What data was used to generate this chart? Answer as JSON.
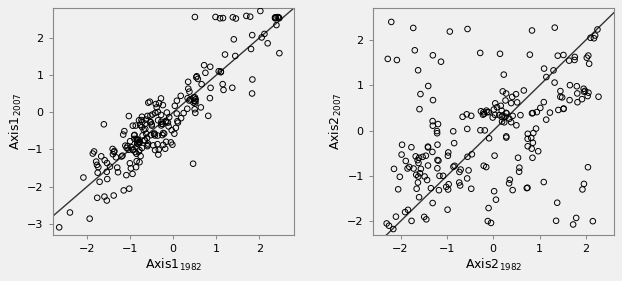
{
  "plot1": {
    "xlabel": "Axis1",
    "xlabel_year": "1982",
    "ylabel": "Axis1",
    "ylabel_year": "2007",
    "xlim": [
      -2.8,
      2.8
    ],
    "ylim": [
      -3.3,
      2.8
    ],
    "xticks": [
      -2,
      -1,
      0,
      1,
      2
    ],
    "yticks": [
      -3,
      -2,
      -1,
      0,
      1,
      2
    ]
  },
  "plot2": {
    "xlabel": "Axis2",
    "xlabel_year": "1982",
    "ylabel": "Axis2",
    "ylabel_year": "2007",
    "xlim": [
      -2.6,
      2.6
    ],
    "ylim": [
      -2.3,
      2.7
    ],
    "xticks": [
      -2,
      -1,
      0,
      1,
      2
    ],
    "yticks": [
      -2,
      -1,
      0,
      1,
      2
    ]
  },
  "marker_size": 16,
  "marker_lw": 0.7,
  "line_color": "#333333",
  "line_width": 1.0,
  "bg_color": "#f0f0f0",
  "panel_bg": "#f0f0f0",
  "label_fontsize": 9,
  "tick_fontsize": 8
}
